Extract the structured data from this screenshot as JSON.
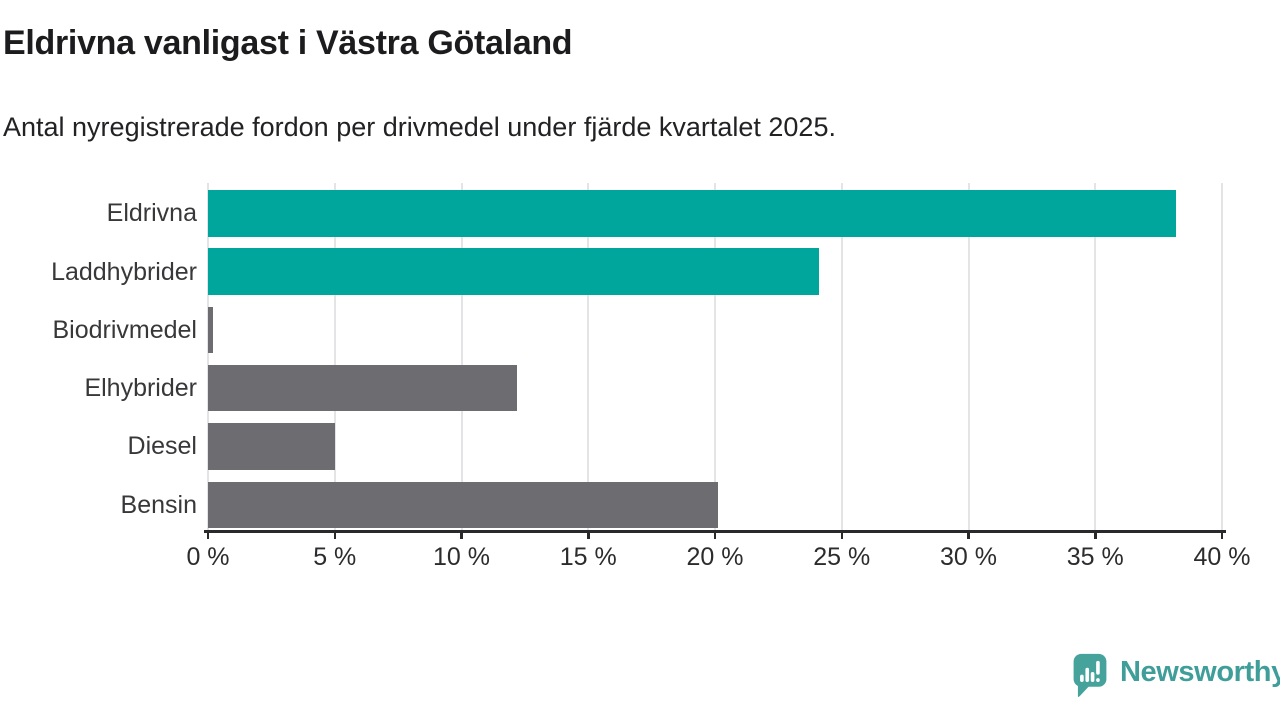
{
  "header": {
    "title": "Eldrivna vanligast i Västra Götaland",
    "subtitle": "Antal nyregistrerade fordon per drivmedel under fjärde kvartalet 2025."
  },
  "chart_data": {
    "type": "bar",
    "orientation": "horizontal",
    "title": "Eldrivna vanligast i Västra Götaland",
    "subtitle": "Antal nyregistrerade fordon per drivmedel under fjärde kvartalet 2025.",
    "categories": [
      "Eldrivna",
      "Laddhybrider",
      "Biodrivmedel",
      "Elhybrider",
      "Diesel",
      "Bensin"
    ],
    "values": [
      38.2,
      24.1,
      0.2,
      12.2,
      5.0,
      20.1
    ],
    "unit": "%",
    "xlim": [
      0,
      40
    ],
    "x_tick_values": [
      0,
      5,
      10,
      15,
      20,
      25,
      30,
      35,
      40
    ],
    "x_tick_labels": [
      "0 %",
      "5 %",
      "10 %",
      "15 %",
      "20 %",
      "25 %",
      "30 %",
      "35 %",
      "40 %"
    ],
    "bar_colors": [
      "#00A59B",
      "#00A59B",
      "#6C6C71",
      "#6C6C71",
      "#6C6C71",
      "#6C6C71"
    ],
    "grid": "vertical",
    "legend": "none"
  },
  "colors": {
    "highlight": "#00A59B",
    "neutral": "#6C6C71",
    "grid": "#e4e4e6",
    "axis": "#29292c",
    "brand": "#3f9e99"
  },
  "footer": {
    "brand_name": "Newsworthy",
    "logo_icon": "newsworthy-chart-speech-bubble-icon"
  }
}
